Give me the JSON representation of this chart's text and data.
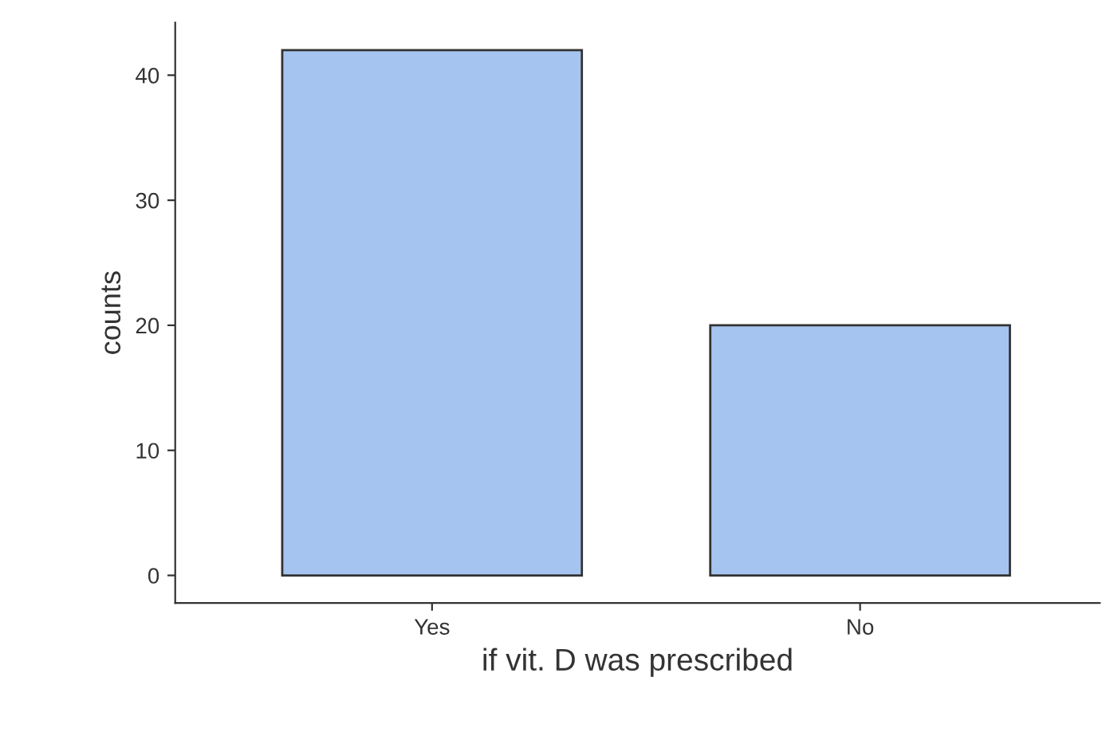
{
  "chart_data": {
    "type": "bar",
    "xlabel": "if vit. D was prescribed",
    "ylabel": "counts",
    "categories": [
      "Yes",
      "No"
    ],
    "values": [
      42,
      20
    ],
    "color": "#a6c4f0",
    "ylim": [
      -2.2,
      44.2
    ],
    "yticks": [
      0,
      10,
      20,
      30,
      40
    ],
    "grid": false
  }
}
